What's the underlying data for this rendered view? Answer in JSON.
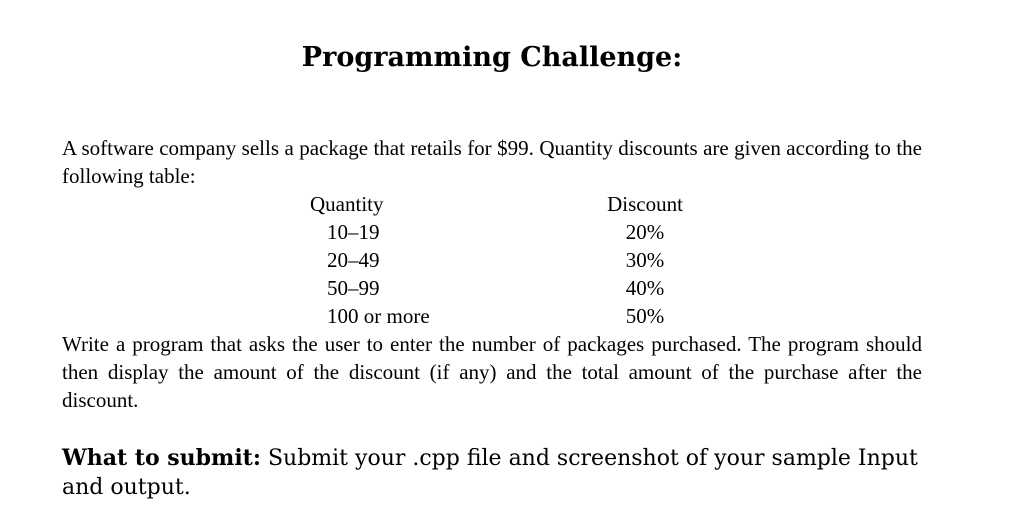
{
  "title": "Programming Challenge:",
  "intro_paragraph": "A software company sells a package that retails for $99. Quantity discounts are given according to the following table:",
  "discount_table": {
    "headers": {
      "quantity": "Quantity",
      "discount": "Discount"
    },
    "rows": [
      {
        "quantity": "10–19",
        "discount": "20%"
      },
      {
        "quantity": "20–49",
        "discount": "30%"
      },
      {
        "quantity": "50–99",
        "discount": "40%"
      },
      {
        "quantity": "100 or more",
        "discount": "50%"
      }
    ]
  },
  "task_paragraph": "Write a program that asks the user to enter the number of packages purchased. The program should then display the amount of the discount (if any) and the total amount of the purchase after the discount.",
  "submission": {
    "label": "What to submit:",
    "text": " Submit your .cpp file and screenshot of your sample Input and output."
  }
}
